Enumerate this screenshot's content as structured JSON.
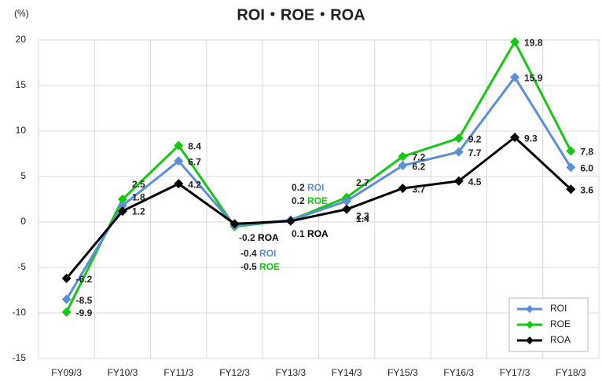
{
  "chart_data": {
    "type": "line",
    "title": "ROI・ROE・ROA",
    "y_label": "(%)",
    "categories": [
      "FY09/3",
      "FY10/3",
      "FY11/3",
      "FY12/3",
      "FY13/3",
      "FY14/3",
      "FY15/3",
      "FY16/3",
      "FY17/3",
      "FY18/3"
    ],
    "series": [
      {
        "name": "ROI",
        "color": "#5b8fd6",
        "values": [
          -8.5,
          1.8,
          6.7,
          -0.4,
          0.2,
          2.3,
          6.2,
          7.7,
          15.9,
          6.0
        ],
        "value_labels": [
          "-8.5",
          "1.8",
          "6.7",
          "-0.4",
          "0.2",
          "2.3",
          "6.2",
          "7.7",
          "15.9",
          "6.0"
        ]
      },
      {
        "name": "ROE",
        "color": "#14c814",
        "values": [
          -9.9,
          2.5,
          8.4,
          -0.5,
          0.2,
          2.7,
          7.2,
          9.2,
          19.8,
          7.8
        ],
        "value_labels": [
          "-9.9",
          "2.5",
          "8.4",
          "-0.5",
          "0.2",
          "2.7",
          "7.2",
          "9.2",
          "19.8",
          "7.8"
        ]
      },
      {
        "name": "ROA",
        "color": "#000000",
        "values": [
          -6.2,
          1.2,
          4.2,
          -0.2,
          0.1,
          1.4,
          3.7,
          4.5,
          9.3,
          3.6
        ],
        "value_labels": [
          "-6.2",
          "1.2",
          "4.2",
          "-0.2",
          "0.1",
          "1.4",
          "3.7",
          "4.5",
          "9.3",
          "3.6"
        ]
      }
    ],
    "ylim": [
      -15,
      20
    ],
    "yticks": [
      -15,
      -10,
      -5,
      0,
      5,
      10,
      15,
      20
    ],
    "grid": true,
    "legend": "lower right"
  }
}
